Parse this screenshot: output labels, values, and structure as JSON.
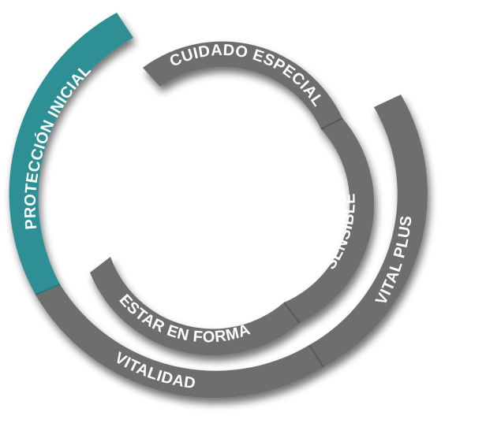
{
  "colors": {
    "teal": "#2f8f94",
    "gray": "#6e6e6e",
    "divider": "#585858",
    "label": "#ffffff"
  },
  "segments": {
    "proteccion_inicial": "PROTECCIÓN INICIAL",
    "cuidado_especial": "CUIDADO ESPECIAL",
    "sensible": "SENSIBLE",
    "estar_en_forma": "ESTAR EN FORMA",
    "vitalidad": "VITALIDAD",
    "vital_plus": "VITAL PLUS"
  }
}
